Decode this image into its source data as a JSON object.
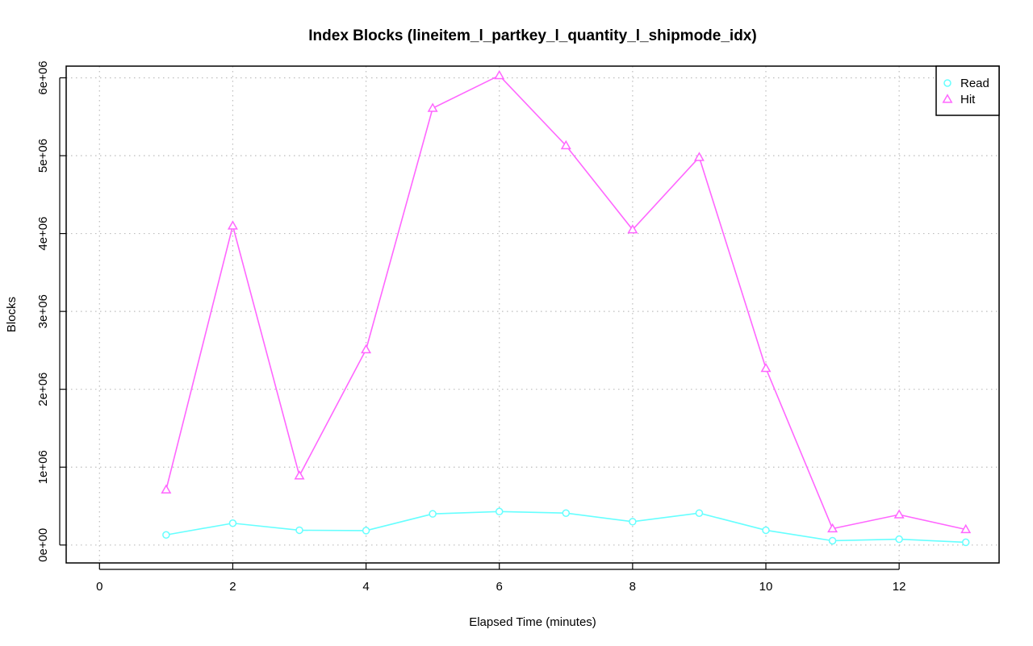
{
  "chart_data": {
    "type": "line",
    "title": "Index Blocks (lineitem_l_partkey_l_quantity_l_shipmode_idx)",
    "xlabel": "Elapsed Time (minutes)",
    "ylabel": "Blocks",
    "xlim": [
      -0.5,
      13.5
    ],
    "ylim": [
      -230000,
      6150000
    ],
    "x_ticks": [
      0,
      2,
      4,
      6,
      8,
      10,
      12
    ],
    "x_tick_labels": [
      "0",
      "2",
      "4",
      "6",
      "8",
      "10",
      "12"
    ],
    "y_ticks": [
      0,
      1000000,
      2000000,
      3000000,
      4000000,
      5000000,
      6000000
    ],
    "y_tick_labels": [
      "0e+00",
      "1e+06",
      "2e+06",
      "3e+06",
      "4e+06",
      "5e+06",
      "6e+06"
    ],
    "grid": true,
    "legend": {
      "position": "top-right"
    },
    "x": [
      1,
      2,
      3,
      4,
      5,
      6,
      7,
      8,
      9,
      10,
      11,
      12,
      13
    ],
    "series": [
      {
        "name": "Read",
        "color": "#66ffff",
        "marker": "circle",
        "values": [
          130000,
          280000,
          190000,
          185000,
          400000,
          430000,
          410000,
          300000,
          410000,
          190000,
          55000,
          75000,
          35000
        ]
      },
      {
        "name": "Hit",
        "color": "#ff66ff",
        "marker": "triangle",
        "values": [
          710000,
          4100000,
          890000,
          2510000,
          5610000,
          6030000,
          5130000,
          4050000,
          4980000,
          2270000,
          210000,
          390000,
          200000
        ]
      }
    ]
  }
}
